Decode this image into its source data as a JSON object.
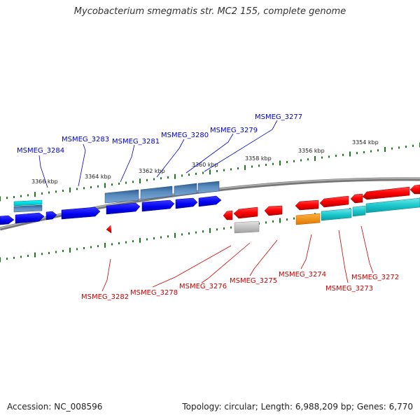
{
  "title": "Mycobacterium smegmatis str. MC2 155, complete genome",
  "footer": {
    "accession": "Accession: NC_008596",
    "summary": "Topology: circular; Length: 6,988,209 bp; Genes: 6,770"
  },
  "colors": {
    "plus_strand_label": "#0000cc",
    "minus_strand_label": "#cc0000",
    "forward_cds": "#0000ff",
    "forward_gene": "#4a7fb5",
    "forward_extra": "#00d5d5",
    "reverse_cds": "#ff0000",
    "reverse_gene": "#00bfc4",
    "reverse_orange": "#ff9900",
    "reverse_grey": "#b8b8b8",
    "backbone": "#808080",
    "ruler_tick": "#1a7a1a"
  },
  "ruler_labels": {
    "top": [
      "3366 kbp",
      "3364 kbp",
      "3362 kbp",
      "3360 kbp",
      "3358 kbp",
      "3356 kbp",
      "3354 kbp"
    ]
  },
  "gene_labels": {
    "plus": [
      "MSMEG_3284",
      "MSMEG_3283",
      "MSMEG_3281",
      "MSMEG_3280",
      "MSMEG_3279",
      "MSMEG_3277"
    ],
    "minus": [
      "MSMEG_3282",
      "MSMEG_3278",
      "MSMEG_3276",
      "MSMEG_3275",
      "MSMEG_3274",
      "MSMEG_3273",
      "MSMEG_3272"
    ]
  }
}
